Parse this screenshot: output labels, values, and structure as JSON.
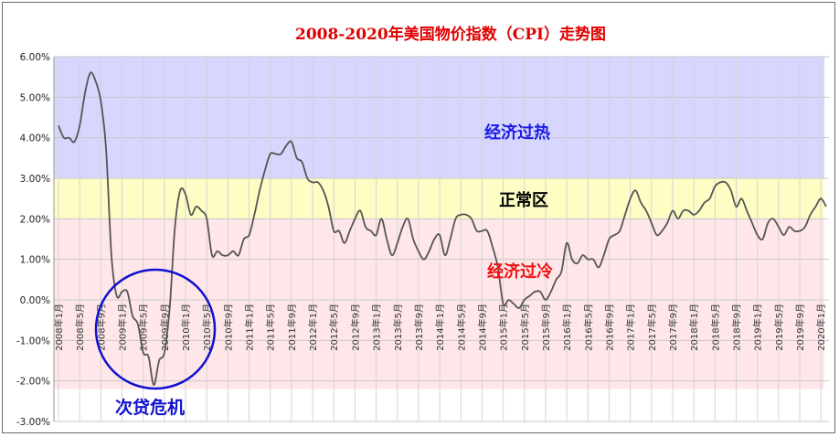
{
  "chart_data": {
    "type": "line",
    "title": "2008-2020年美国物价指数（CPI）走势图",
    "xlabel": "",
    "ylabel": "",
    "ylim": [
      -3.0,
      6.0
    ],
    "yticks": [
      "6.00%",
      "5.00%",
      "4.00%",
      "3.00%",
      "2.00%",
      "1.00%",
      "0.00%",
      "-1.00%",
      "-2.00%",
      "-3.00%"
    ],
    "grid": true,
    "legend": "none",
    "line_color": "#555555",
    "x_tick_labels": [
      "2008年1月",
      "2008年5月",
      "2008年9月",
      "2009年1月",
      "2009年5月",
      "2009年9月",
      "2010年1月",
      "2010年5月",
      "2010年9月",
      "2011年1月",
      "2011年5月",
      "2011年9月",
      "2012年1月",
      "2012年5月",
      "2012年9月",
      "2013年1月",
      "2013年5月",
      "2013年9月",
      "2014年1月",
      "2014年5月",
      "2014年9月",
      "2015年1月",
      "2015年5月",
      "2015年9月",
      "2016年1月",
      "2016年5月",
      "2016年9月",
      "2017年1月",
      "2017年5月",
      "2017年9月",
      "2018年1月",
      "2018年5月",
      "2018年9月",
      "2019年1月",
      "2019年5月",
      "2019年9月",
      "2020年1月"
    ],
    "series": [
      {
        "values": [
          4.3,
          4.0,
          4.0,
          3.9,
          4.3,
          5.1,
          5.6,
          5.4,
          4.9,
          3.7,
          1.1,
          0.1,
          0.2,
          0.2,
          -0.4,
          -0.6,
          -1.3,
          -1.4,
          -2.1,
          -1.5,
          -1.3,
          -0.2,
          1.8,
          2.7,
          2.6,
          2.1,
          2.3,
          2.2,
          2.0,
          1.1,
          1.2,
          1.1,
          1.1,
          1.2,
          1.1,
          1.5,
          1.6,
          2.1,
          2.7,
          3.2,
          3.6,
          3.6,
          3.6,
          3.8,
          3.9,
          3.5,
          3.4,
          3.0,
          2.9,
          2.9,
          2.7,
          2.3,
          1.7,
          1.7,
          1.4,
          1.7,
          2.0,
          2.2,
          1.8,
          1.7,
          1.6,
          2.0,
          1.5,
          1.1,
          1.4,
          1.8,
          2.0,
          1.5,
          1.2,
          1.0,
          1.2,
          1.5,
          1.6,
          1.1,
          1.5,
          2.0,
          2.1,
          2.1,
          2.0,
          1.7,
          1.7,
          1.7,
          1.3,
          0.8,
          -0.1,
          0.0,
          -0.1,
          -0.2,
          0.0,
          0.1,
          0.2,
          0.2,
          0.0,
          0.2,
          0.5,
          0.7,
          1.4,
          1.0,
          0.9,
          1.1,
          1.0,
          1.0,
          0.8,
          1.1,
          1.5,
          1.6,
          1.7,
          2.1,
          2.5,
          2.7,
          2.4,
          2.2,
          1.9,
          1.6,
          1.7,
          1.9,
          2.2,
          2.0,
          2.2,
          2.2,
          2.1,
          2.2,
          2.4,
          2.5,
          2.8,
          2.9,
          2.9,
          2.7,
          2.3,
          2.5,
          2.2,
          1.9,
          1.6,
          1.5,
          1.9,
          2.0,
          1.8,
          1.6,
          1.8,
          1.7,
          1.7,
          1.8,
          2.1,
          2.3,
          2.5,
          2.3
        ]
      }
    ],
    "zones": [
      {
        "name": "经济过热",
        "from": 3.0,
        "to": 6.0,
        "color": "#d6d6ff",
        "label_color": "#1a1ae6"
      },
      {
        "name": "正常区",
        "from": 2.0,
        "to": 3.0,
        "color": "#fdfdc4",
        "label_color": "#000000"
      },
      {
        "name": "经济过冷",
        "from": -2.2,
        "to": 2.0,
        "color": "#ffe6e8",
        "label_color": "#ee1111"
      }
    ],
    "annotations": [
      {
        "text": "次贷危机",
        "color": "#1010d0"
      }
    ]
  }
}
